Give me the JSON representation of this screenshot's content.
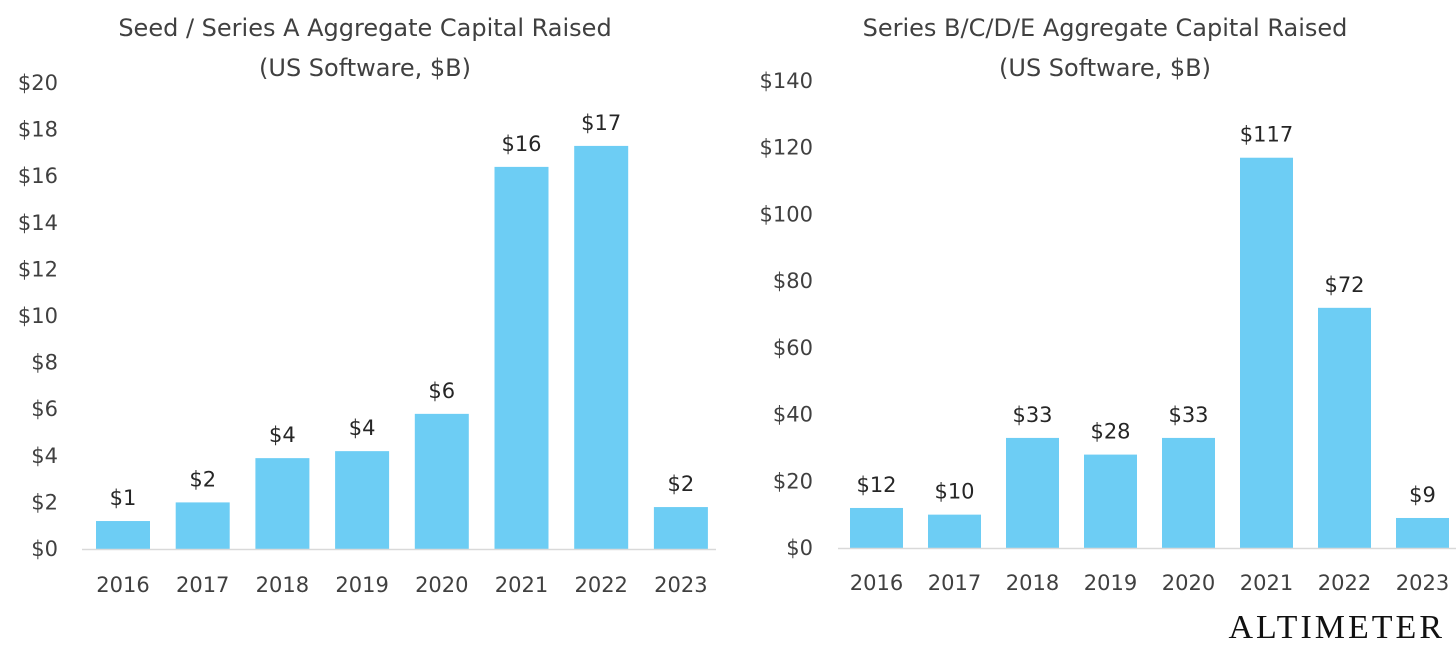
{
  "colors": {
    "bar": "#6DCDF4",
    "baseline": "#D9D9D9",
    "text": "#404040"
  },
  "brand": "ALTIMETER",
  "chart_data": [
    {
      "type": "bar",
      "title": "Seed / Series A Aggregate Capital Raised",
      "subtitle": "(US Software, $B)",
      "categories": [
        "2016",
        "2017",
        "2018",
        "2019",
        "2020",
        "2021",
        "2022",
        "2023"
      ],
      "values": [
        1.2,
        2.0,
        3.9,
        4.2,
        5.8,
        16.4,
        17.3,
        1.8
      ],
      "data_labels": [
        "$1",
        "$2",
        "$4",
        "$4",
        "$6",
        "$16",
        "$17",
        "$2"
      ],
      "ylim": [
        0,
        20
      ],
      "yticks": [
        0,
        2,
        4,
        6,
        8,
        10,
        12,
        14,
        16,
        18,
        20
      ],
      "ytick_labels": [
        "$0",
        "$2",
        "$4",
        "$6",
        "$8",
        "$10",
        "$12",
        "$14",
        "$16",
        "$18",
        "$20"
      ],
      "xlabel": "",
      "ylabel": "",
      "grid": false,
      "legend": "none"
    },
    {
      "type": "bar",
      "title": "Series B/C/D/E Aggregate Capital Raised",
      "subtitle": "(US Software, $B)",
      "categories": [
        "2016",
        "2017",
        "2018",
        "2019",
        "2020",
        "2021",
        "2022",
        "2023"
      ],
      "values": [
        12,
        10,
        33,
        28,
        33,
        117,
        72,
        9
      ],
      "data_labels": [
        "$12",
        "$10",
        "$33",
        "$28",
        "$33",
        "$117",
        "$72",
        "$9"
      ],
      "ylim": [
        0,
        140
      ],
      "yticks": [
        0,
        20,
        40,
        60,
        80,
        100,
        120,
        140
      ],
      "ytick_labels": [
        "$0",
        "$20",
        "$40",
        "$60",
        "$80",
        "$100",
        "$120",
        "$140"
      ],
      "xlabel": "",
      "ylabel": "",
      "grid": false,
      "legend": "none"
    }
  ]
}
